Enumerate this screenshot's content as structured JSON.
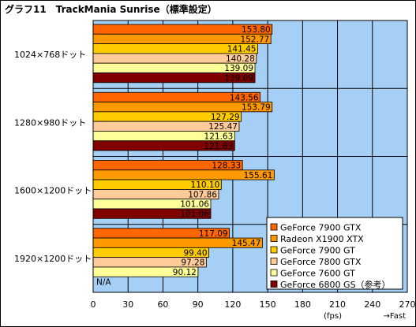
{
  "chart_data": {
    "type": "bar",
    "orientation": "horizontal",
    "title": "グラフ11　TrackMania Sunrise（標準設定）",
    "xlabel": "(fps)",
    "x_note": "→Fast",
    "xlim": [
      0,
      270
    ],
    "xticks": [
      0,
      30,
      60,
      90,
      120,
      150,
      180,
      210,
      240,
      270
    ],
    "grid": true,
    "background": "#a6cff5",
    "legend_position": "bottom-right",
    "categories": [
      "1024×768ドット",
      "1280×980ドット",
      "1600×1200ドット",
      "1920×1200ドット"
    ],
    "series": [
      {
        "name": "GeForce 7900 GTX",
        "color": "#ff6600",
        "values": [
          153.8,
          143.56,
          128.33,
          117.09
        ],
        "labels": [
          "153.80",
          "143.56",
          "128.33",
          "117.09"
        ]
      },
      {
        "name": "Radeon X1900 XTX",
        "color": "#ff9900",
        "values": [
          152.77,
          153.79,
          155.61,
          145.47
        ],
        "labels": [
          "152.77",
          "153.79",
          "155.61",
          "145.47"
        ]
      },
      {
        "name": "GeForce 7900 GT",
        "color": "#ffcc00",
        "values": [
          141.45,
          127.29,
          110.1,
          99.4
        ],
        "labels": [
          "141.45",
          "127.29",
          "110.10",
          "99.40"
        ]
      },
      {
        "name": "GeForce 7800 GTX",
        "color": "#ffcc99",
        "values": [
          140.28,
          125.47,
          107.86,
          97.28
        ],
        "labels": [
          "140.28",
          "125.47",
          "107.86",
          "97.28"
        ]
      },
      {
        "name": "GeForce 7600 GT",
        "color": "#ffff99",
        "values": [
          139.09,
          121.63,
          101.06,
          90.12
        ],
        "labels": [
          "139.09",
          "121.63",
          "101.06",
          "90.12"
        ]
      },
      {
        "name": "GeForce 6800 GS（参考）",
        "color": "#800000",
        "values": [
          139.09,
          121.63,
          101.06,
          null
        ],
        "labels": [
          "139.09",
          "121.63",
          "101.06",
          "N/A"
        ]
      }
    ]
  }
}
